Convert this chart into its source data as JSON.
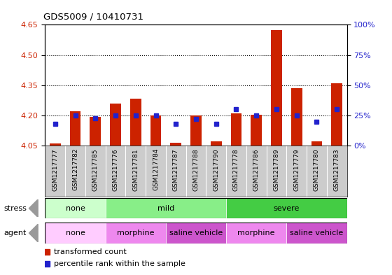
{
  "title": "GDS5009 / 10410731",
  "samples": [
    "GSM1217777",
    "GSM1217782",
    "GSM1217785",
    "GSM1217776",
    "GSM1217781",
    "GSM1217784",
    "GSM1217787",
    "GSM1217788",
    "GSM1217790",
    "GSM1217778",
    "GSM1217786",
    "GSM1217789",
    "GSM1217779",
    "GSM1217780",
    "GSM1217783"
  ],
  "bar_values": [
    4.06,
    4.22,
    4.195,
    4.26,
    4.285,
    4.2,
    4.065,
    4.2,
    4.073,
    4.21,
    4.205,
    4.625,
    4.335,
    4.073,
    4.36
  ],
  "percentile_values": [
    18,
    25,
    23,
    25,
    25,
    25,
    18,
    22,
    18,
    30,
    25,
    30,
    25,
    20,
    30
  ],
  "ylim_left": [
    4.05,
    4.65
  ],
  "ylim_right": [
    0,
    100
  ],
  "yticks_left": [
    4.05,
    4.2,
    4.35,
    4.5,
    4.65
  ],
  "yticks_right": [
    0,
    25,
    50,
    75,
    100
  ],
  "hlines": [
    4.2,
    4.35,
    4.5
  ],
  "bar_color": "#cc2200",
  "dot_color": "#2222cc",
  "bar_bottom": 4.05,
  "stress_groups": [
    {
      "label": "none",
      "start": 0,
      "end": 3,
      "color": "#ccffcc"
    },
    {
      "label": "mild",
      "start": 3,
      "end": 9,
      "color": "#88ee88"
    },
    {
      "label": "severe",
      "start": 9,
      "end": 15,
      "color": "#44cc44"
    }
  ],
  "agent_groups": [
    {
      "label": "none",
      "start": 0,
      "end": 3,
      "color": "#ffccff"
    },
    {
      "label": "morphine",
      "start": 3,
      "end": 6,
      "color": "#ee88ee"
    },
    {
      "label": "saline vehicle",
      "start": 6,
      "end": 9,
      "color": "#cc55cc"
    },
    {
      "label": "morphine",
      "start": 9,
      "end": 12,
      "color": "#ee88ee"
    },
    {
      "label": "saline vehicle",
      "start": 12,
      "end": 15,
      "color": "#cc55cc"
    }
  ],
  "legend_items": [
    {
      "label": "transformed count",
      "color": "#cc2200"
    },
    {
      "label": "percentile rank within the sample",
      "color": "#2222cc"
    }
  ],
  "xticklabel_bg": "#cccccc",
  "arrow_color": "#999999"
}
